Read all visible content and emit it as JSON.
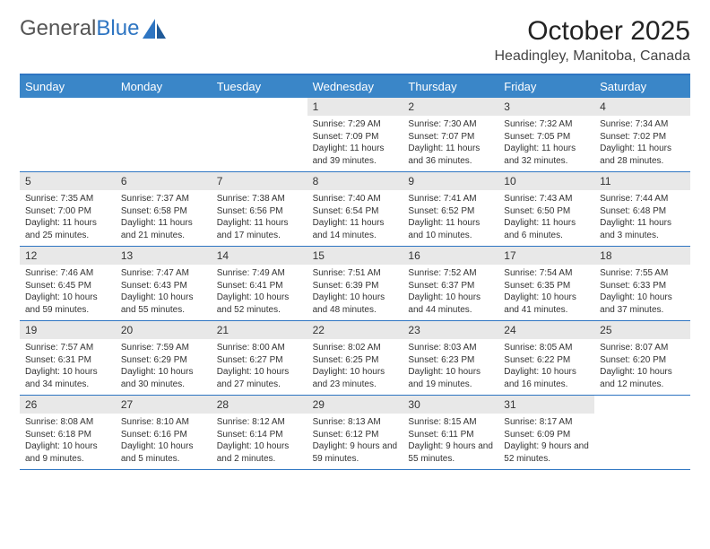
{
  "logo": {
    "text1": "General",
    "text2": "Blue"
  },
  "title": "October 2025",
  "location": "Headingley, Manitoba, Canada",
  "colors": {
    "header_bg": "#3a86c8",
    "border": "#2e75c2",
    "numbar_bg": "#e8e8e8",
    "text": "#333333",
    "logo_blue": "#2e75c2"
  },
  "day_headers": [
    "Sunday",
    "Monday",
    "Tuesday",
    "Wednesday",
    "Thursday",
    "Friday",
    "Saturday"
  ],
  "weeks": [
    [
      {
        "num": "",
        "sunrise": "",
        "sunset": "",
        "daylight": ""
      },
      {
        "num": "",
        "sunrise": "",
        "sunset": "",
        "daylight": ""
      },
      {
        "num": "",
        "sunrise": "",
        "sunset": "",
        "daylight": ""
      },
      {
        "num": "1",
        "sunrise": "Sunrise: 7:29 AM",
        "sunset": "Sunset: 7:09 PM",
        "daylight": "Daylight: 11 hours and 39 minutes."
      },
      {
        "num": "2",
        "sunrise": "Sunrise: 7:30 AM",
        "sunset": "Sunset: 7:07 PM",
        "daylight": "Daylight: 11 hours and 36 minutes."
      },
      {
        "num": "3",
        "sunrise": "Sunrise: 7:32 AM",
        "sunset": "Sunset: 7:05 PM",
        "daylight": "Daylight: 11 hours and 32 minutes."
      },
      {
        "num": "4",
        "sunrise": "Sunrise: 7:34 AM",
        "sunset": "Sunset: 7:02 PM",
        "daylight": "Daylight: 11 hours and 28 minutes."
      }
    ],
    [
      {
        "num": "5",
        "sunrise": "Sunrise: 7:35 AM",
        "sunset": "Sunset: 7:00 PM",
        "daylight": "Daylight: 11 hours and 25 minutes."
      },
      {
        "num": "6",
        "sunrise": "Sunrise: 7:37 AM",
        "sunset": "Sunset: 6:58 PM",
        "daylight": "Daylight: 11 hours and 21 minutes."
      },
      {
        "num": "7",
        "sunrise": "Sunrise: 7:38 AM",
        "sunset": "Sunset: 6:56 PM",
        "daylight": "Daylight: 11 hours and 17 minutes."
      },
      {
        "num": "8",
        "sunrise": "Sunrise: 7:40 AM",
        "sunset": "Sunset: 6:54 PM",
        "daylight": "Daylight: 11 hours and 14 minutes."
      },
      {
        "num": "9",
        "sunrise": "Sunrise: 7:41 AM",
        "sunset": "Sunset: 6:52 PM",
        "daylight": "Daylight: 11 hours and 10 minutes."
      },
      {
        "num": "10",
        "sunrise": "Sunrise: 7:43 AM",
        "sunset": "Sunset: 6:50 PM",
        "daylight": "Daylight: 11 hours and 6 minutes."
      },
      {
        "num": "11",
        "sunrise": "Sunrise: 7:44 AM",
        "sunset": "Sunset: 6:48 PM",
        "daylight": "Daylight: 11 hours and 3 minutes."
      }
    ],
    [
      {
        "num": "12",
        "sunrise": "Sunrise: 7:46 AM",
        "sunset": "Sunset: 6:45 PM",
        "daylight": "Daylight: 10 hours and 59 minutes."
      },
      {
        "num": "13",
        "sunrise": "Sunrise: 7:47 AM",
        "sunset": "Sunset: 6:43 PM",
        "daylight": "Daylight: 10 hours and 55 minutes."
      },
      {
        "num": "14",
        "sunrise": "Sunrise: 7:49 AM",
        "sunset": "Sunset: 6:41 PM",
        "daylight": "Daylight: 10 hours and 52 minutes."
      },
      {
        "num": "15",
        "sunrise": "Sunrise: 7:51 AM",
        "sunset": "Sunset: 6:39 PM",
        "daylight": "Daylight: 10 hours and 48 minutes."
      },
      {
        "num": "16",
        "sunrise": "Sunrise: 7:52 AM",
        "sunset": "Sunset: 6:37 PM",
        "daylight": "Daylight: 10 hours and 44 minutes."
      },
      {
        "num": "17",
        "sunrise": "Sunrise: 7:54 AM",
        "sunset": "Sunset: 6:35 PM",
        "daylight": "Daylight: 10 hours and 41 minutes."
      },
      {
        "num": "18",
        "sunrise": "Sunrise: 7:55 AM",
        "sunset": "Sunset: 6:33 PM",
        "daylight": "Daylight: 10 hours and 37 minutes."
      }
    ],
    [
      {
        "num": "19",
        "sunrise": "Sunrise: 7:57 AM",
        "sunset": "Sunset: 6:31 PM",
        "daylight": "Daylight: 10 hours and 34 minutes."
      },
      {
        "num": "20",
        "sunrise": "Sunrise: 7:59 AM",
        "sunset": "Sunset: 6:29 PM",
        "daylight": "Daylight: 10 hours and 30 minutes."
      },
      {
        "num": "21",
        "sunrise": "Sunrise: 8:00 AM",
        "sunset": "Sunset: 6:27 PM",
        "daylight": "Daylight: 10 hours and 27 minutes."
      },
      {
        "num": "22",
        "sunrise": "Sunrise: 8:02 AM",
        "sunset": "Sunset: 6:25 PM",
        "daylight": "Daylight: 10 hours and 23 minutes."
      },
      {
        "num": "23",
        "sunrise": "Sunrise: 8:03 AM",
        "sunset": "Sunset: 6:23 PM",
        "daylight": "Daylight: 10 hours and 19 minutes."
      },
      {
        "num": "24",
        "sunrise": "Sunrise: 8:05 AM",
        "sunset": "Sunset: 6:22 PM",
        "daylight": "Daylight: 10 hours and 16 minutes."
      },
      {
        "num": "25",
        "sunrise": "Sunrise: 8:07 AM",
        "sunset": "Sunset: 6:20 PM",
        "daylight": "Daylight: 10 hours and 12 minutes."
      }
    ],
    [
      {
        "num": "26",
        "sunrise": "Sunrise: 8:08 AM",
        "sunset": "Sunset: 6:18 PM",
        "daylight": "Daylight: 10 hours and 9 minutes."
      },
      {
        "num": "27",
        "sunrise": "Sunrise: 8:10 AM",
        "sunset": "Sunset: 6:16 PM",
        "daylight": "Daylight: 10 hours and 5 minutes."
      },
      {
        "num": "28",
        "sunrise": "Sunrise: 8:12 AM",
        "sunset": "Sunset: 6:14 PM",
        "daylight": "Daylight: 10 hours and 2 minutes."
      },
      {
        "num": "29",
        "sunrise": "Sunrise: 8:13 AM",
        "sunset": "Sunset: 6:12 PM",
        "daylight": "Daylight: 9 hours and 59 minutes."
      },
      {
        "num": "30",
        "sunrise": "Sunrise: 8:15 AM",
        "sunset": "Sunset: 6:11 PM",
        "daylight": "Daylight: 9 hours and 55 minutes."
      },
      {
        "num": "31",
        "sunrise": "Sunrise: 8:17 AM",
        "sunset": "Sunset: 6:09 PM",
        "daylight": "Daylight: 9 hours and 52 minutes."
      },
      {
        "num": "",
        "sunrise": "",
        "sunset": "",
        "daylight": ""
      }
    ]
  ]
}
